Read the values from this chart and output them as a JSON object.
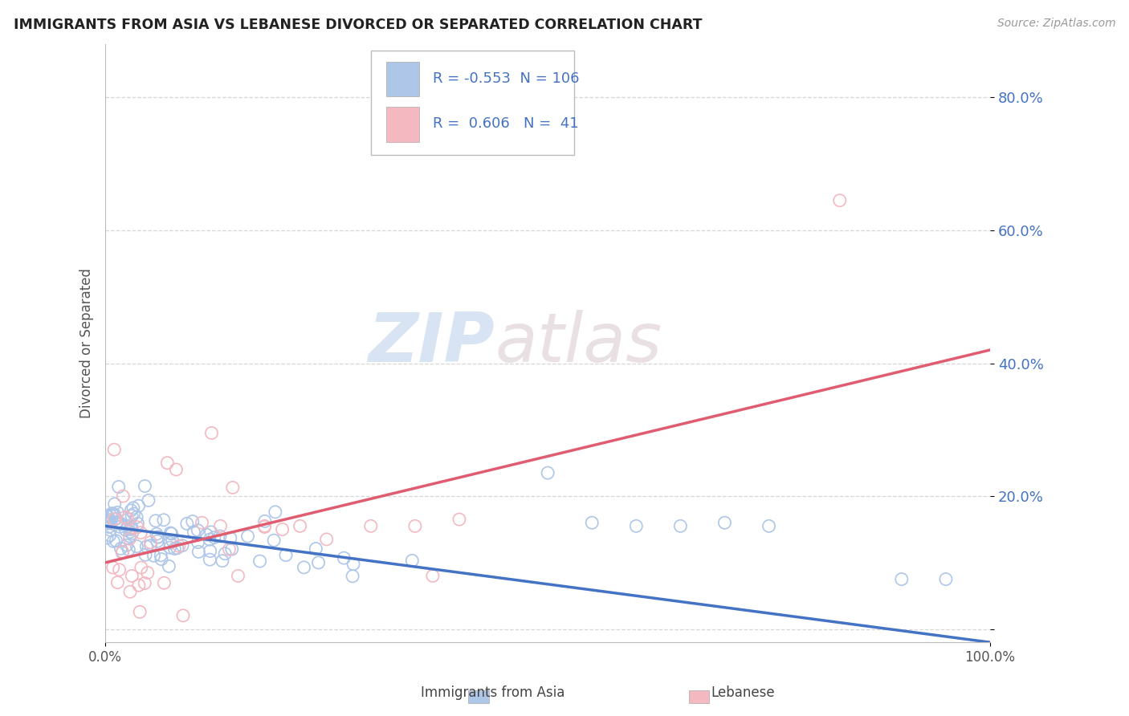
{
  "title": "IMMIGRANTS FROM ASIA VS LEBANESE DIVORCED OR SEPARATED CORRELATION CHART",
  "source": "Source: ZipAtlas.com",
  "ylabel": "Divorced or Separated",
  "xlabel_legend1": "Immigrants from Asia",
  "xlabel_legend2": "Lebanese",
  "r1": -0.553,
  "n1": 106,
  "r2": 0.606,
  "n2": 41,
  "color1": "#aec6e8",
  "color2": "#f4b8c1",
  "line_color1": "#4472c4",
  "line_color2": "#e05c70",
  "tick_color": "#4472c4",
  "xlim": [
    0.0,
    1.0
  ],
  "ylim": [
    -0.02,
    0.88
  ],
  "yticks": [
    0.0,
    0.2,
    0.4,
    0.6,
    0.8
  ],
  "ytick_labels": [
    "",
    "20.0%",
    "40.0%",
    "60.0%",
    "80.0%"
  ],
  "xticks": [
    0.0,
    1.0
  ],
  "xtick_labels": [
    "0.0%",
    "100.0%"
  ],
  "watermark_zip": "ZIP",
  "watermark_atlas": "atlas",
  "background_color": "#ffffff",
  "grid_color": "#cccccc",
  "blue_line_x": [
    0.0,
    1.0
  ],
  "blue_line_y": [
    0.155,
    -0.02
  ],
  "pink_line_x": [
    0.0,
    1.0
  ],
  "pink_line_y": [
    0.1,
    0.42
  ]
}
